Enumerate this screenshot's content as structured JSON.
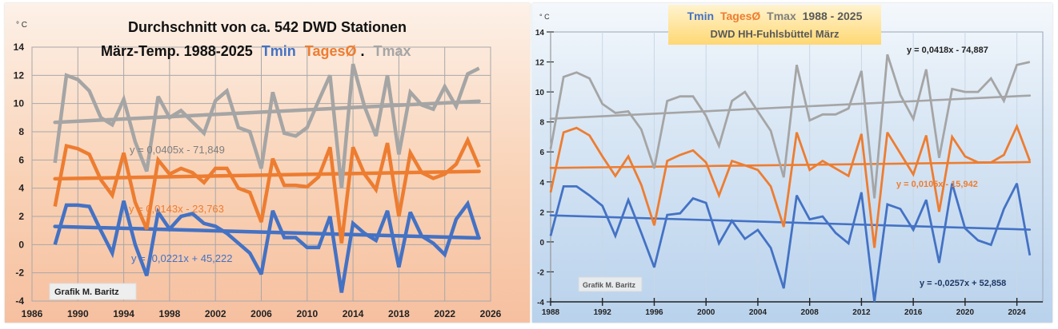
{
  "chart_data": [
    {
      "type": "line",
      "title_line1": "Durchschnitt  von ca. 542 DWD Stationen",
      "title_line2_prefix": "März-Temp.  1988-2025",
      "title_legend": [
        {
          "text": "Tmin",
          "color": "#4472c4"
        },
        {
          "text": "TagesØ",
          "color": "#ed7d31"
        },
        {
          "text": ".",
          "color": "#000000"
        },
        {
          "text": "Tmax",
          "color": "#a5a5a5"
        }
      ],
      "ylabel": "° C",
      "xlabel": "",
      "xlim": [
        1986,
        2026
      ],
      "ylim": [
        -4,
        14
      ],
      "x_ticks": [
        1986,
        1990,
        1994,
        1998,
        2002,
        2006,
        2010,
        2014,
        2018,
        2022,
        2026
      ],
      "y_ticks": [
        -4,
        -2,
        0,
        2,
        4,
        6,
        8,
        10,
        12,
        14
      ],
      "grid": true,
      "x": [
        1988,
        1989,
        1990,
        1991,
        1992,
        1993,
        1994,
        1995,
        1996,
        1997,
        1998,
        1999,
        2000,
        2001,
        2002,
        2003,
        2004,
        2005,
        2006,
        2007,
        2008,
        2009,
        2010,
        2011,
        2012,
        2013,
        2014,
        2015,
        2016,
        2017,
        2018,
        2019,
        2020,
        2021,
        2022,
        2023,
        2024,
        2025
      ],
      "series": [
        {
          "name": "Tmax",
          "color": "#a5a5a5",
          "values": [
            5.8,
            12.0,
            11.7,
            10.9,
            9.0,
            8.5,
            10.3,
            7.3,
            5.2,
            10.5,
            9.0,
            9.5,
            8.7,
            7.9,
            10.2,
            10.9,
            8.3,
            8.0,
            5.4,
            10.8,
            7.9,
            7.7,
            8.3,
            10.2,
            12.0,
            4.0,
            12.8,
            9.8,
            7.7,
            12.0,
            6.4,
            10.8,
            9.9,
            9.6,
            11.2,
            9.8,
            12.1,
            12.5
          ],
          "trend": {
            "slope": 0.0405,
            "intercept": -71.849,
            "label": "y = 0,0405x  - 71,849"
          }
        },
        {
          "name": "TagesØ",
          "color": "#ed7d31",
          "values": [
            2.7,
            7.0,
            6.8,
            6.4,
            4.6,
            3.5,
            6.5,
            3.0,
            1.1,
            6.0,
            5.0,
            5.4,
            5.1,
            4.4,
            5.4,
            5.4,
            4.0,
            3.7,
            1.6,
            6.1,
            4.2,
            4.2,
            4.1,
            4.8,
            6.9,
            0.1,
            6.9,
            5.0,
            3.9,
            7.2,
            2.0,
            6.5,
            5.1,
            4.7,
            5.0,
            5.7,
            7.4,
            5.5
          ],
          "trend": {
            "slope": 0.0143,
            "intercept": -23.763,
            "label": "y = 0,0143x  - 23,763"
          }
        },
        {
          "name": "Tmin",
          "color": "#4472c4",
          "values": [
            0.0,
            2.8,
            2.8,
            2.7,
            1.0,
            -0.6,
            3.1,
            0.0,
            -2.2,
            2.3,
            1.1,
            2.0,
            2.2,
            1.5,
            1.3,
            0.8,
            0.1,
            -0.6,
            -2.1,
            2.4,
            0.5,
            0.5,
            -0.2,
            -0.2,
            2.0,
            -3.4,
            1.5,
            0.8,
            0.3,
            2.4,
            -1.6,
            2.3,
            0.6,
            0.1,
            -0.7,
            1.8,
            2.9,
            0.4
          ],
          "trend": {
            "slope": -0.0221,
            "intercept": 45.222,
            "label": "y = -0,0221x + 45,222"
          }
        }
      ],
      "watermark": "Grafik  M. Baritz"
    },
    {
      "type": "line",
      "title_legend": [
        {
          "text": "Tmin",
          "color": "#4472c4"
        },
        {
          "text": "TagesØ",
          "color": "#ed7d31"
        },
        {
          "text": "Tmax",
          "color": "#7f7f7f"
        },
        {
          "text": "1988 - 2025",
          "color": "#595959"
        }
      ],
      "title_line2": "DWD HH-Fuhlsbüttel März",
      "ylabel": "° C",
      "xlabel": "",
      "xlim": [
        1988,
        2026
      ],
      "ylim": [
        -4,
        14
      ],
      "x_ticks": [
        1988,
        1992,
        1996,
        2000,
        2004,
        2008,
        2012,
        2016,
        2020,
        2024
      ],
      "y_ticks": [
        -4,
        -2,
        0,
        2,
        4,
        6,
        8,
        10,
        12,
        14
      ],
      "grid": true,
      "x": [
        1988,
        1989,
        1990,
        1991,
        1992,
        1993,
        1994,
        1995,
        1996,
        1997,
        1998,
        1999,
        2000,
        2001,
        2002,
        2003,
        2004,
        2005,
        2006,
        2007,
        2008,
        2009,
        2010,
        2011,
        2012,
        2013,
        2014,
        2015,
        2016,
        2017,
        2018,
        2019,
        2020,
        2021,
        2022,
        2023,
        2024,
        2025
      ],
      "series": [
        {
          "name": "Tmax",
          "color": "#a5a5a5",
          "values": [
            6.2,
            11.0,
            11.3,
            10.9,
            9.2,
            8.6,
            8.7,
            7.5,
            4.9,
            9.4,
            9.7,
            9.7,
            8.4,
            6.4,
            9.4,
            10.0,
            8.7,
            7.4,
            4.3,
            11.8,
            8.1,
            8.5,
            8.5,
            8.9,
            11.4,
            2.9,
            12.5,
            9.8,
            8.2,
            11.5,
            5.6,
            10.2,
            10.0,
            10.0,
            10.9,
            9.4,
            11.8,
            12.0
          ],
          "trend": {
            "slope": 0.0418,
            "intercept": -74.887,
            "label": "y = 0,0418x - 74,887"
          }
        },
        {
          "name": "TagesØ",
          "color": "#ed7d31",
          "values": [
            3.3,
            7.3,
            7.6,
            7.1,
            5.7,
            4.4,
            5.7,
            3.8,
            1.1,
            5.4,
            5.8,
            6.1,
            5.3,
            3.1,
            5.4,
            5.1,
            4.8,
            3.7,
            1.0,
            7.3,
            4.8,
            5.4,
            4.9,
            4.4,
            7.2,
            -0.4,
            7.3,
            5.9,
            4.5,
            7.1,
            2.0,
            7.0,
            5.7,
            5.3,
            5.3,
            5.8,
            7.7,
            5.4
          ],
          "trend": {
            "slope": 0.0105,
            "intercept": -15.942,
            "label": "y = 0,0105x - 15,942"
          }
        },
        {
          "name": "Tmin",
          "color": "#4472c4",
          "values": [
            0.4,
            3.7,
            3.7,
            3.1,
            2.4,
            0.4,
            2.8,
            0.6,
            -1.7,
            1.8,
            1.9,
            2.9,
            2.6,
            -0.1,
            1.4,
            0.2,
            0.8,
            -0.4,
            -3.1,
            3.1,
            1.5,
            1.7,
            0.6,
            -0.1,
            3.3,
            -4.0,
            2.5,
            2.2,
            0.8,
            2.8,
            -1.4,
            3.9,
            0.9,
            0.1,
            -0.2,
            2.2,
            3.9,
            -0.9
          ],
          "trend": {
            "slope": -0.0257,
            "intercept": 52.858,
            "label": "y = -0,0257x + 52,858"
          }
        }
      ],
      "watermark": "Grafik M. Baritz"
    }
  ]
}
